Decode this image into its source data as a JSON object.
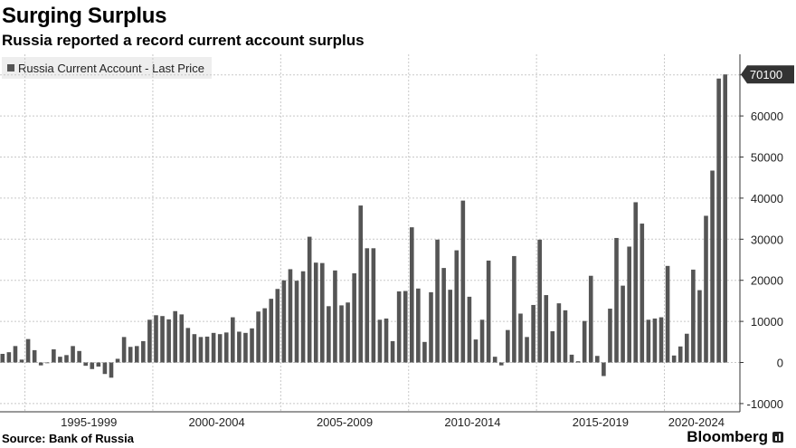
{
  "header": {
    "title": "Surging Surplus",
    "subtitle": "Russia reported a record current account surplus"
  },
  "legend": {
    "label": "Russia Current Account - Last Price"
  },
  "footer": {
    "source": "Source: Bank of Russia",
    "brand": "Bloomberg"
  },
  "colors": {
    "bar": "#555555",
    "grid": "#c8c8c8",
    "axis": "#333333",
    "last_price_tag": "#333333"
  },
  "chart_data": {
    "type": "bar",
    "title": "Russia Current Account - Last Price",
    "xlabel": "",
    "ylabel": "",
    "ylim": [
      -12000,
      75000
    ],
    "y_ticks": [
      -10000,
      0,
      10000,
      20000,
      30000,
      40000,
      50000,
      60000,
      70000
    ],
    "y_tick_labels": [
      "-10000",
      "0",
      "10000",
      "20000",
      "30000",
      "40000",
      "50000",
      "60000",
      "70000"
    ],
    "period_labels": [
      "1995-1999",
      "2000-2004",
      "2005-2009",
      "2010-2014",
      "2015-2019",
      "2020-2024"
    ],
    "series": [
      {
        "name": "Russia Current Account - Last Price",
        "frequency": "quarterly",
        "start": "1994 Q1",
        "values": [
          2100,
          2500,
          4000,
          700,
          5700,
          3000,
          -700,
          0,
          3200,
          1400,
          1800,
          4000,
          2800,
          -800,
          -1600,
          -1000,
          -2800,
          -3700,
          900,
          6200,
          3800,
          4000,
          5200,
          10400,
          11500,
          11300,
          10500,
          12500,
          11700,
          8400,
          6900,
          6200,
          6300,
          7200,
          6900,
          7300,
          11000,
          7500,
          7200,
          8300,
          12400,
          13200,
          15500,
          17900,
          20000,
          22700,
          19900,
          22200,
          30600,
          24300,
          24200,
          13700,
          22400,
          13900,
          14600,
          21700,
          38200,
          27800,
          27800,
          10400,
          10700,
          5200,
          17300,
          17400,
          32900,
          18000,
          5000,
          17100,
          29900,
          23000,
          17700,
          27300,
          39400,
          16000,
          5600,
          10400,
          24800,
          1400,
          -700,
          7900,
          25900,
          11900,
          6200,
          14000,
          29900,
          16400,
          7600,
          14400,
          12700,
          1900,
          300,
          10100,
          21100,
          1600,
          -3300,
          13100,
          30300,
          18700,
          28200,
          39000,
          33800,
          10400,
          10700,
          11000,
          23500,
          1700,
          3900,
          7000,
          22600,
          17600,
          35700,
          46700,
          69100,
          70100
        ]
      }
    ],
    "last_price_label": "70100"
  }
}
